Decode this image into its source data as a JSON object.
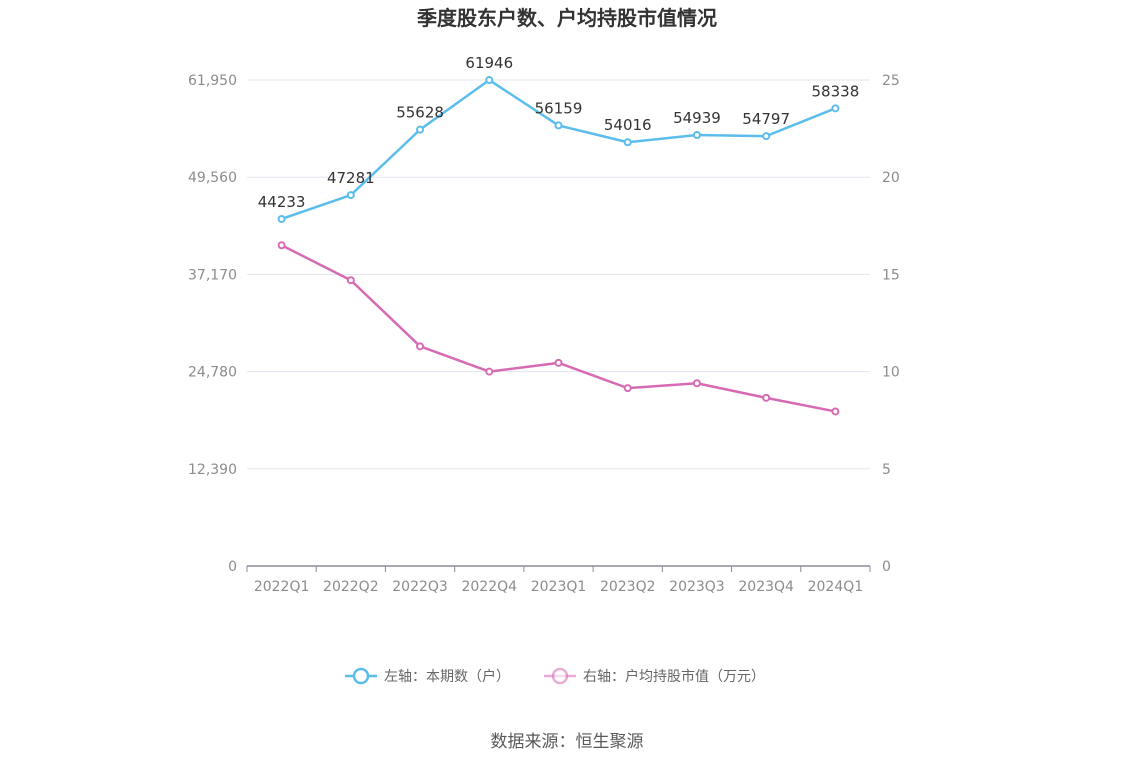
{
  "chart_data": {
    "type": "line",
    "title": "季度股东户数、户均持股市值情况",
    "categories": [
      "2022Q1",
      "2022Q2",
      "2022Q3",
      "2022Q4",
      "2023Q1",
      "2023Q2",
      "2023Q3",
      "2023Q4",
      "2024Q1"
    ],
    "series": [
      {
        "name": "左轴：本期数（户）",
        "axis": "left",
        "color": "#5bbdec",
        "values": [
          44233,
          47281,
          55628,
          61946,
          56159,
          54016,
          54939,
          54797,
          58338
        ],
        "data_labels": [
          "44233",
          "47281",
          "55628",
          "61946",
          "56159",
          "54016",
          "54939",
          "54797",
          "58338"
        ]
      },
      {
        "name": "右轴：户均持股市值（万元）",
        "axis": "right",
        "color": "#d66bb4",
        "values": [
          16.5,
          14.7,
          11.3,
          10.0,
          10.45,
          9.15,
          9.4,
          8.65,
          7.95
        ]
      }
    ],
    "left_axis": {
      "min": 0,
      "max": 61950,
      "ticks": [
        0,
        12390,
        24780,
        37170,
        49560,
        61950
      ],
      "tick_labels": [
        "0",
        "12,390",
        "24,780",
        "37,170",
        "49,560",
        "61,950"
      ]
    },
    "right_axis": {
      "min": 0,
      "max": 25,
      "ticks": [
        0,
        5,
        10,
        15,
        20,
        25
      ],
      "tick_labels": [
        "0",
        "5",
        "10",
        "15",
        "20",
        "25"
      ]
    },
    "grid": true,
    "legend_position": "bottom",
    "source": "数据来源：恒生聚源"
  }
}
